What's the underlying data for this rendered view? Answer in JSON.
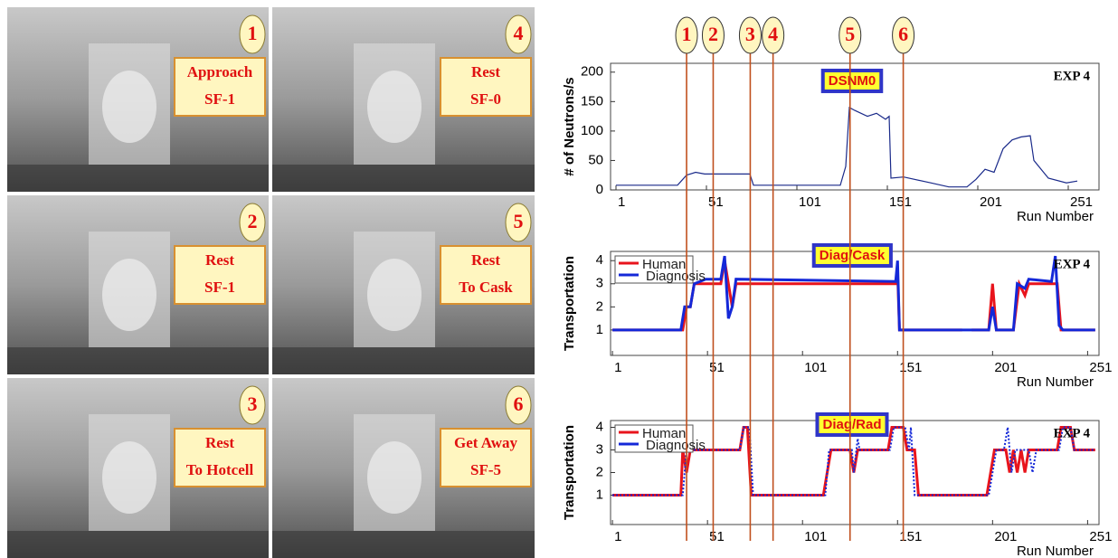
{
  "panels": [
    {
      "number": "1",
      "label": [
        "Approach",
        "SF-1"
      ]
    },
    {
      "number": "4",
      "label": [
        "Rest",
        "SF-0"
      ]
    },
    {
      "number": "2",
      "label": [
        "Rest",
        "SF-1"
      ]
    },
    {
      "number": "5",
      "label": [
        "Rest",
        "To Cask"
      ]
    },
    {
      "number": "3",
      "label": [
        "Rest",
        "To Hotcell"
      ]
    },
    {
      "number": "6",
      "label": [
        "Get Away",
        "SF-5"
      ]
    }
  ],
  "events": [
    {
      "label": "1",
      "x": 40
    },
    {
      "label": "2",
      "x": 54
    },
    {
      "label": "3",
      "x": 73.5
    },
    {
      "label": "4",
      "x": 85.5
    },
    {
      "label": "5",
      "x": 126
    },
    {
      "label": "6",
      "x": 154
    }
  ],
  "chart_data": [
    {
      "type": "line",
      "title": "DSNM0",
      "note": "EXP 4",
      "ylabel": "# of Neutrons/s",
      "xlabel": "Run Number",
      "xlim": [
        -2,
        268
      ],
      "ylim": [
        0,
        215
      ],
      "xticks": [
        1,
        51,
        101,
        151,
        201,
        251
      ],
      "yticks": [
        0,
        50,
        100,
        150,
        200
      ],
      "series": [
        {
          "color": "#1a2a8a",
          "style": "solid",
          "x": [
            1,
            35,
            40,
            45,
            50,
            75,
            77,
            125,
            128,
            130,
            133,
            140,
            145,
            150,
            152,
            153,
            160,
            175,
            185,
            195,
            200,
            205,
            210,
            215,
            220,
            225,
            230,
            232,
            240,
            250,
            256
          ],
          "values": [
            8,
            8,
            25,
            30,
            27,
            27,
            8,
            8,
            40,
            140,
            135,
            125,
            130,
            120,
            125,
            20,
            22,
            12,
            5,
            5,
            18,
            35,
            30,
            70,
            85,
            90,
            92,
            50,
            20,
            12,
            15
          ]
        }
      ]
    },
    {
      "type": "line",
      "title": "Diag/Cask",
      "note": "EXP 4",
      "ylabel": "Transportation",
      "xlabel": "Run Number",
      "legend": "upper left",
      "xlim": [
        0,
        257
      ],
      "ylim": [
        -0.1,
        4.4
      ],
      "xticks": [
        1,
        51,
        101,
        151,
        201,
        251
      ],
      "yticks": [
        1,
        2,
        3,
        4
      ],
      "series": [
        {
          "name": "Human",
          "color": "#e8141c",
          "style": "solid",
          "x": [
            1,
            38,
            40,
            42,
            44,
            58,
            60,
            62,
            64,
            66,
            150,
            151,
            152,
            185,
            188,
            190,
            199,
            201,
            203,
            212,
            215,
            218,
            220,
            235,
            237,
            255
          ],
          "values": [
            1,
            1,
            2,
            2,
            3,
            3,
            4,
            3,
            2,
            3,
            3,
            3.5,
            1,
            1,
            null,
            1,
            1,
            3,
            1,
            1,
            3,
            2.5,
            3,
            3,
            1,
            1
          ]
        },
        {
          "name": "Diagnosis",
          "color": "#1428d8",
          "style": "solid",
          "x": [
            1,
            37,
            39,
            42,
            44,
            50,
            58,
            60,
            62,
            64,
            66,
            150,
            151,
            152,
            199,
            201,
            203,
            212,
            214,
            218,
            220,
            232,
            234,
            236,
            238,
            255
          ],
          "values": [
            1,
            1,
            2,
            2,
            3,
            3.2,
            3.2,
            4.2,
            1.5,
            2,
            3.2,
            3.1,
            4,
            1,
            1,
            2,
            1,
            1,
            3,
            2.8,
            3.2,
            3.1,
            4.2,
            1.2,
            1,
            1
          ]
        }
      ]
    },
    {
      "type": "line",
      "title": "Diag/Rad",
      "note": "EXP 4",
      "ylabel": "Transportation",
      "xlabel": "Run Number",
      "legend": "upper left",
      "xlim": [
        0,
        257
      ],
      "ylim": [
        -0.3,
        4.3
      ],
      "xticks": [
        1,
        51,
        101,
        151,
        201,
        251
      ],
      "yticks": [
        1,
        2,
        3,
        4
      ],
      "series": [
        {
          "name": "Human",
          "color": "#e8141c",
          "style": "solid",
          "x": [
            1,
            37,
            38,
            40,
            42,
            68,
            70,
            72,
            74,
            112,
            114,
            116,
            126,
            128,
            130,
            146,
            148,
            154,
            156,
            160,
            162,
            198,
            200,
            202,
            208,
            210,
            212,
            214,
            216,
            218,
            220,
            235,
            237,
            242,
            244,
            255
          ],
          "values": [
            1,
            1,
            3,
            2,
            3,
            3,
            4,
            4,
            1,
            1,
            2,
            3,
            3,
            2,
            3,
            3,
            4,
            4,
            3,
            3,
            1,
            1,
            2,
            3,
            3,
            2,
            3,
            2,
            3,
            2,
            3,
            3,
            4,
            4,
            3,
            3
          ]
        },
        {
          "name": "Diagnosis",
          "color": "#1428d8",
          "style": "dotted",
          "x": [
            1,
            38,
            40,
            68,
            70,
            73,
            75,
            113,
            115,
            127,
            128,
            130,
            131,
            147,
            149,
            155,
            157,
            158,
            160,
            199,
            201,
            203,
            207,
            209,
            211,
            213,
            220,
            222,
            224,
            236,
            238,
            242,
            244,
            255
          ],
          "values": [
            1,
            1,
            3,
            3,
            4,
            4,
            1,
            1,
            3,
            3,
            2,
            3.5,
            3,
            3,
            4,
            4,
            3,
            4,
            1,
            1,
            2,
            3,
            3,
            4,
            2,
            3,
            3,
            2,
            3,
            3,
            4,
            4,
            3,
            3
          ]
        }
      ]
    }
  ]
}
